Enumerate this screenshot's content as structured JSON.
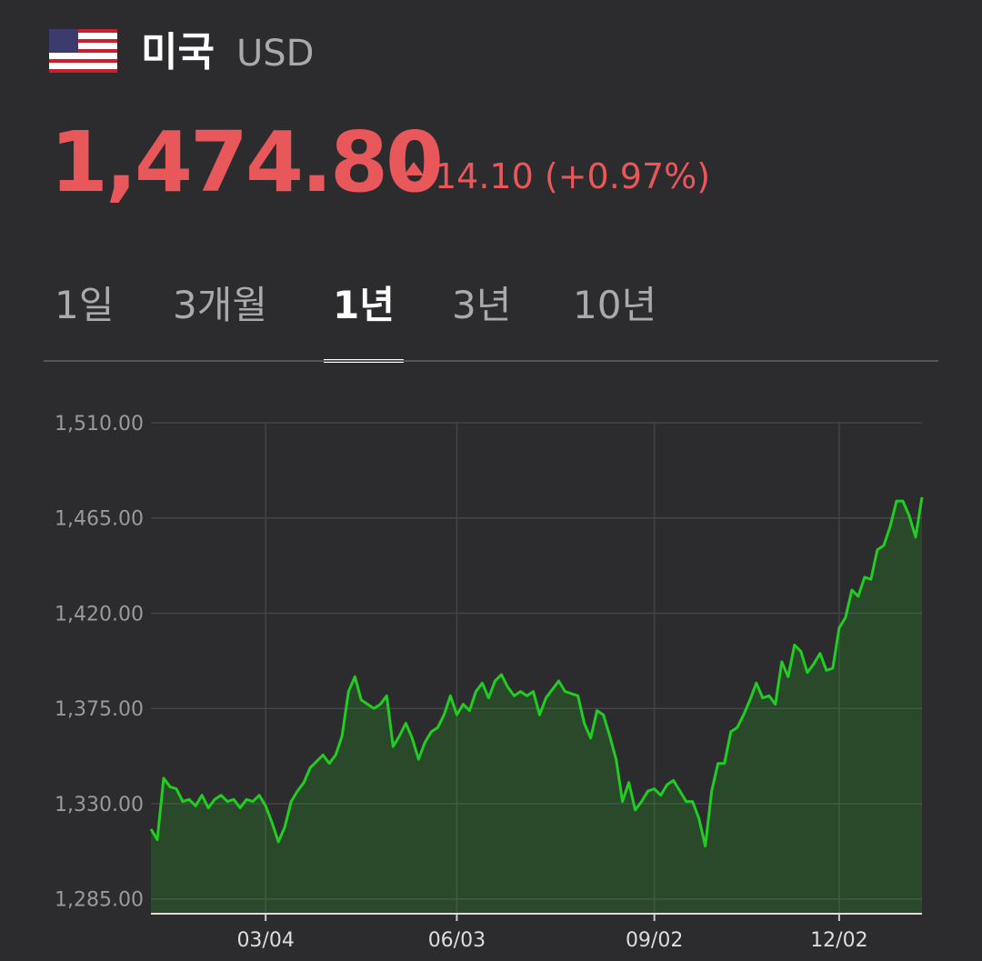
{
  "header": {
    "country": "미국",
    "currency": "USD",
    "price": "1,474.80",
    "change": "14.10 (+0.97%)"
  },
  "tabs": {
    "items": [
      "1일",
      "3개월",
      "1년",
      "3년",
      "10년"
    ],
    "selected": 2
  },
  "chart_data": {
    "type": "line",
    "categories": [
      null,
      null,
      null,
      null,
      null,
      null,
      null,
      null,
      null,
      null,
      null,
      null,
      null,
      null,
      null,
      null,
      null,
      null,
      "03/04",
      null,
      null,
      null,
      null,
      null,
      null,
      null,
      null,
      null,
      null,
      null,
      null,
      null,
      null,
      null,
      null,
      null,
      null,
      null,
      null,
      null,
      null,
      null,
      null,
      null,
      null,
      null,
      null,
      null,
      "06/03",
      null,
      null,
      null,
      null,
      null,
      null,
      null,
      null,
      null,
      null,
      null,
      null,
      null,
      null,
      null,
      null,
      null,
      null,
      null,
      null,
      null,
      null,
      null,
      null,
      null,
      null,
      null,
      null,
      null,
      null,
      "09/02",
      null,
      null,
      null,
      null,
      null,
      null,
      null,
      null,
      null,
      null,
      null,
      null,
      null,
      null,
      null,
      null,
      null,
      null,
      null,
      null,
      null,
      null,
      null,
      null,
      null,
      null,
      null,
      null,
      "12/02",
      null,
      null,
      null,
      null,
      null,
      null,
      null,
      null,
      null,
      null,
      null,
      null,
      null
    ],
    "series": [
      {
        "color": "#22cc22",
        "values": [
          1318,
          1313,
          1342,
          1338,
          1337,
          1331,
          1332,
          1329,
          1334,
          1328,
          1332,
          1334,
          1331,
          1332,
          1328,
          1332,
          1331,
          1334,
          1329,
          1321,
          1312,
          1319,
          1331,
          1336,
          1340,
          1347,
          1350,
          1353,
          1349,
          1353,
          1362,
          1383,
          1390,
          1379,
          1377,
          1375,
          1377,
          1381,
          1357,
          1362,
          1368,
          1361,
          1351,
          1359,
          1364,
          1366,
          1372,
          1381,
          1372,
          1377,
          1374,
          1383,
          1387,
          1380,
          1388,
          1391,
          1385,
          1381,
          1383,
          1381,
          1383,
          1372,
          1380,
          1384,
          1388,
          1383,
          1382,
          1381,
          1368,
          1361,
          1374,
          1372,
          1362,
          1351,
          1331,
          1340,
          1327,
          1331,
          1336,
          1337,
          1334,
          1339,
          1341,
          1336,
          1331,
          1331,
          1323,
          1310,
          1336,
          1349,
          1349,
          1364,
          1366,
          1372,
          1379,
          1387,
          1380,
          1381,
          1377,
          1397,
          1390,
          1405,
          1402,
          1392,
          1396,
          1401,
          1393,
          1394,
          1413,
          1418,
          1431,
          1428,
          1437,
          1436,
          1450,
          1452,
          1461,
          1473,
          1473,
          1466,
          1456,
          1474.8
        ]
      }
    ],
    "ylim": [
      1278,
      1510
    ],
    "yticks": [
      {
        "value": 1285,
        "label": "1,285.00"
      },
      {
        "value": 1330,
        "label": "1,330.00"
      },
      {
        "value": 1375,
        "label": "1,375.00"
      },
      {
        "value": 1420,
        "label": "1,420.00"
      },
      {
        "value": 1465,
        "label": "1,465.00"
      },
      {
        "value": 1510,
        "label": "1,510.00"
      }
    ],
    "grid": true
  }
}
